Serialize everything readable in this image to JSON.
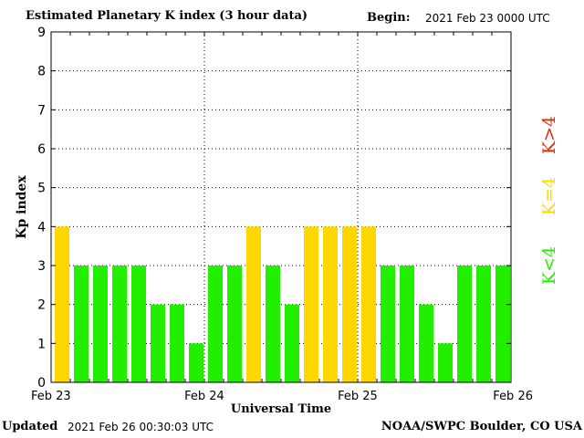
{
  "header": {
    "title": "Estimated Planetary K index (3 hour data)",
    "begin_label": "Begin:",
    "begin_value": "2021 Feb 23 0000 UTC"
  },
  "footer": {
    "updated_label": "Updated",
    "updated_value": "2021 Feb 26 00:30:03 UTC",
    "credit": "NOAA/SWPC Boulder, CO USA"
  },
  "legend": {
    "above": "K>4",
    "equal": "K=4",
    "below": "K<4"
  },
  "colors": {
    "below4": "#22ee00",
    "equal4": "#ffd700",
    "above4": "#ee2200",
    "axis": "#000000",
    "grid": "#000000"
  },
  "chart_data": {
    "type": "bar",
    "xlabel": "Universal Time",
    "ylabel": "Kp index",
    "ylim": [
      0,
      9
    ],
    "yticks": [
      "0",
      "1",
      "2",
      "3",
      "4",
      "5",
      "6",
      "7",
      "8",
      "9"
    ],
    "xticks": [
      "Feb 23",
      "Feb 24",
      "Feb 25",
      "Feb 26"
    ],
    "grid": true,
    "bars_per_day": 8,
    "values": [
      4,
      3,
      3,
      3,
      3,
      2,
      2,
      1,
      3,
      3,
      4,
      3,
      2,
      4,
      4,
      4,
      4,
      3,
      3,
      2,
      1,
      3,
      3,
      3
    ]
  }
}
